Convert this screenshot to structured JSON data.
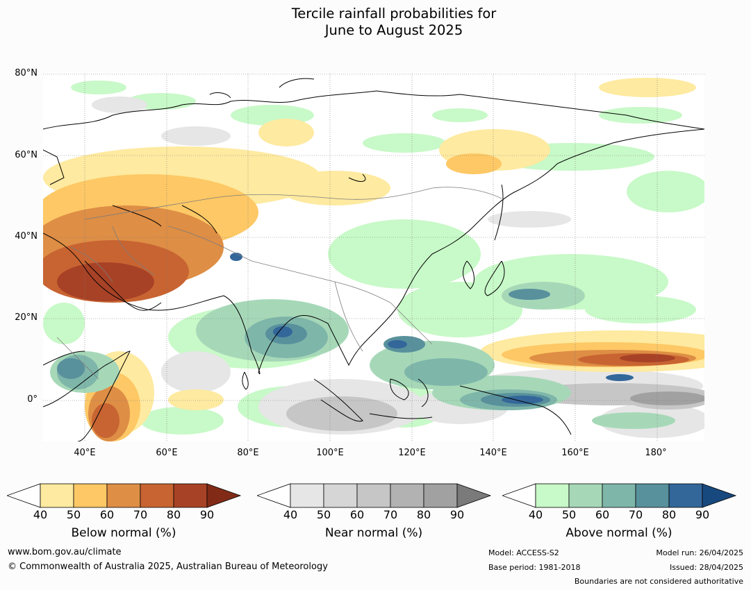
{
  "title_line1": "Tercile rainfall probabilities for",
  "title_line2": "June to August 2025",
  "lat_labels": [
    "80°N",
    "60°N",
    "40°N",
    "20°N",
    "0°"
  ],
  "lon_labels": [
    "40°E",
    "60°E",
    "80°E",
    "100°E",
    "120°E",
    "140°E",
    "160°E",
    "180°"
  ],
  "colorbars": [
    {
      "title": "Below normal (%)",
      "ticks": [
        "40",
        "50",
        "60",
        "70",
        "80",
        "90"
      ],
      "colors": [
        "#ffffff",
        "#feeaa0",
        "#fdc865",
        "#de8e45",
        "#c86432",
        "#a84226",
        "#812b17"
      ]
    },
    {
      "title": "Near normal (%)",
      "ticks": [
        "40",
        "50",
        "60",
        "70",
        "80",
        "90"
      ],
      "colors": [
        "#ffffff",
        "#e6e6e6",
        "#d6d6d6",
        "#c6c6c6",
        "#b2b2b2",
        "#a1a1a1",
        "#7a7a7a"
      ]
    },
    {
      "title": "Above normal (%)",
      "ticks": [
        "40",
        "50",
        "60",
        "70",
        "80",
        "90"
      ],
      "colors": [
        "#ffffff",
        "#c8f9c8",
        "#a6d8b8",
        "#7fb6aa",
        "#58919c",
        "#33679a",
        "#18497e"
      ]
    }
  ],
  "footer": {
    "website": "www.bom.gov.au/climate",
    "copyright": "© Commonwealth of Australia 2025, Australian Bureau of Meteorology",
    "model": "Model: ACCESS-S2",
    "base_period": "Base period: 1981-2018",
    "model_run": "Model run: 26/04/2025",
    "issued": "Issued: 28/04/2025",
    "disclaimer": "Boundaries are not considered authoritative"
  }
}
